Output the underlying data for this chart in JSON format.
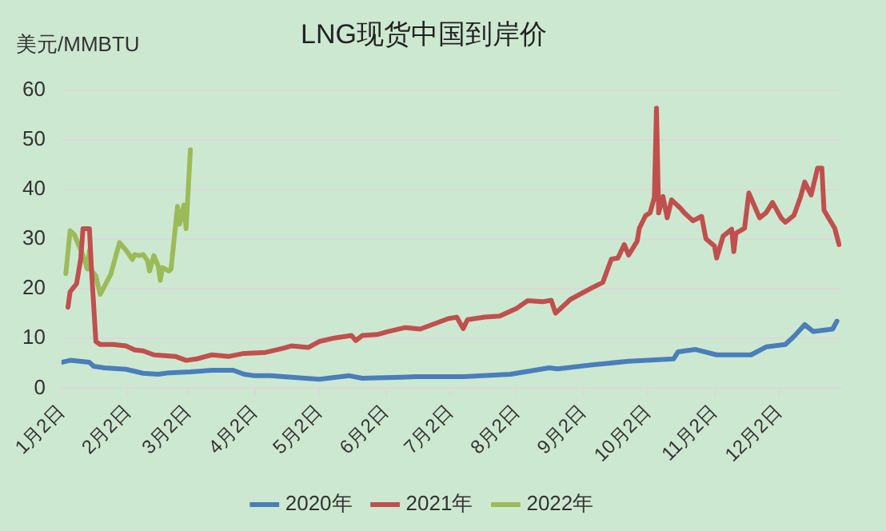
{
  "chart_data": {
    "type": "line",
    "title": "LNG现货中国到岸价",
    "ylabel": "美元/MMBTU",
    "xlim": [
      "--01-02",
      "--12-31"
    ],
    "xticks": [
      {
        "value": "--01-02",
        "label": "1月2日"
      },
      {
        "value": "--02-02",
        "label": "2月2日"
      },
      {
        "value": "--03-02",
        "label": "3月2日"
      },
      {
        "value": "--04-02",
        "label": "4月2日"
      },
      {
        "value": "--05-02",
        "label": "5月2日"
      },
      {
        "value": "--06-02",
        "label": "6月2日"
      },
      {
        "value": "--07-02",
        "label": "7月2日"
      },
      {
        "value": "--08-02",
        "label": "8月2日"
      },
      {
        "value": "--09-02",
        "label": "9月2日"
      },
      {
        "value": "--10-02",
        "label": "10月2日"
      },
      {
        "value": "--11-02",
        "label": "11月2日"
      },
      {
        "value": "--12-02",
        "label": "12月2日"
      }
    ],
    "ylim": [
      0,
      60
    ],
    "yticks": [
      0,
      10,
      20,
      30,
      40,
      50,
      60
    ],
    "grid": "y",
    "legend": "bottom",
    "marker": "none",
    "line_style": "solid",
    "series": [
      {
        "name": "2020年",
        "color": "#4a7ebb",
        "x": [
          "--01-02",
          "--01-06",
          "--01-15",
          "--01-17",
          "--01-22",
          "--02-01",
          "--02-09",
          "--02-16",
          "--02-21",
          "--03-03",
          "--03-13",
          "--03-23",
          "--03-28",
          "--04-02",
          "--04-09",
          "--05-02",
          "--05-16",
          "--05-22",
          "--06-16",
          "--07-08",
          "--07-30",
          "--08-17",
          "--08-21",
          "--09-06",
          "--09-23",
          "--10-14",
          "--10-16",
          "--10-24",
          "--11-03",
          "--11-19",
          "--11-26",
          "--12-05",
          "--12-09",
          "--12-14",
          "--12-18",
          "--12-27",
          "--12-29"
        ],
        "values": [
          5.2,
          5.6,
          5.2,
          4.4,
          4.1,
          3.8,
          3.0,
          2.8,
          3.1,
          3.3,
          3.6,
          3.6,
          2.8,
          2.5,
          2.5,
          1.8,
          2.5,
          2.0,
          2.3,
          2.3,
          2.8,
          4.1,
          3.9,
          4.7,
          5.4,
          5.9,
          7.3,
          7.8,
          6.7,
          6.7,
          8.3,
          8.8,
          10.4,
          12.8,
          11.4,
          11.9,
          13.5
        ]
      },
      {
        "name": "2021年",
        "color": "#c0504d",
        "x": [
          "--01-05",
          "--01-06",
          "--01-09",
          "--01-11",
          "--01-12",
          "--01-15",
          "--01-16",
          "--01-18",
          "--01-20",
          "--01-26",
          "--02-01",
          "--02-05",
          "--02-09",
          "--02-14",
          "--02-24",
          "--03-01",
          "--03-06",
          "--03-13",
          "--03-21",
          "--03-28",
          "--04-07",
          "--04-15",
          "--04-19",
          "--04-27",
          "--05-02",
          "--05-09",
          "--05-17",
          "--05-19",
          "--05-22",
          "--05-29",
          "--06-03",
          "--06-11",
          "--06-18",
          "--06-23",
          "--07-01",
          "--07-05",
          "--07-08",
          "--07-10",
          "--07-18",
          "--07-25",
          "--08-02",
          "--08-07",
          "--08-14",
          "--08-18",
          "--08-20",
          "--08-27",
          "--09-06",
          "--09-11",
          "--09-15",
          "--09-18",
          "--09-21",
          "--09-23",
          "--09-27",
          "--09-28",
          "--10-01",
          "--10-03",
          "--10-05",
          "--10-06",
          "--10-07",
          "--10-09",
          "--10-11",
          "--10-13",
          "--10-17",
          "--10-19",
          "--10-23",
          "--10-27",
          "--10-29",
          "--11-02",
          "--11-03",
          "--11-06",
          "--11-10",
          "--11-11",
          "--11-12",
          "--11-16",
          "--11-18",
          "--11-21",
          "--11-23",
          "--11-26",
          "--11-29",
          "--12-03",
          "--12-05",
          "--12-09",
          "--12-12",
          "--12-14",
          "--12-17",
          "--12-20",
          "--12-22",
          "--12-23",
          "--12-28",
          "--12-30"
        ],
        "values": [
          16.3,
          19.4,
          21,
          26.2,
          32.1,
          32.1,
          23.6,
          9.4,
          8.8,
          8.8,
          8.5,
          7.7,
          7.5,
          6.7,
          6.4,
          5.6,
          5.9,
          6.7,
          6.4,
          7.0,
          7.2,
          8.0,
          8.5,
          8.2,
          9.4,
          10.1,
          10.6,
          9.6,
          10.6,
          10.8,
          11.4,
          12.2,
          11.9,
          12.7,
          14,
          14.3,
          12,
          13.8,
          14.3,
          14.5,
          16.1,
          17.6,
          17.4,
          17.7,
          15.1,
          17.9,
          20.2,
          21.3,
          26,
          26.2,
          28.9,
          26.8,
          29.6,
          32.2,
          34.8,
          35.3,
          38.4,
          56.4,
          35.3,
          38.6,
          34.3,
          37.9,
          36.3,
          35.3,
          33.7,
          34.6,
          30.1,
          28.6,
          26.2,
          30.6,
          32,
          27.5,
          31.2,
          32.2,
          39.3,
          36.3,
          34.3,
          35.3,
          37.4,
          34.3,
          33.4,
          34.8,
          38.4,
          41.5,
          38.9,
          44.3,
          44.3,
          35.8,
          32.2,
          28.9
        ]
      },
      {
        "name": "2022年",
        "color": "#9bbb59",
        "x": [
          "--01-04",
          "--01-06",
          "--01-08",
          "--01-12",
          "--01-14",
          "--01-15",
          "--01-16",
          "--01-18",
          "--01-20",
          "--01-22",
          "--01-25",
          "--01-27",
          "--01-29",
          "--02-01",
          "--02-04",
          "--02-05",
          "--02-07",
          "--02-09",
          "--02-11",
          "--02-12",
          "--02-14",
          "--02-16",
          "--02-17",
          "--02-18",
          "--02-21",
          "--02-22",
          "--02-25",
          "--02-26",
          "--02-28",
          "--03-01",
          "--03-03"
        ],
        "values": [
          23.1,
          31.7,
          30.9,
          26.7,
          24,
          27.8,
          23.6,
          22.6,
          18.9,
          20.5,
          23,
          26.2,
          29.3,
          27.8,
          25.9,
          26.9,
          26.7,
          26.9,
          25.7,
          23.6,
          26.7,
          24.6,
          21.7,
          24.3,
          23.6,
          24,
          36.6,
          33,
          36.9,
          32.1,
          48
        ]
      }
    ]
  }
}
